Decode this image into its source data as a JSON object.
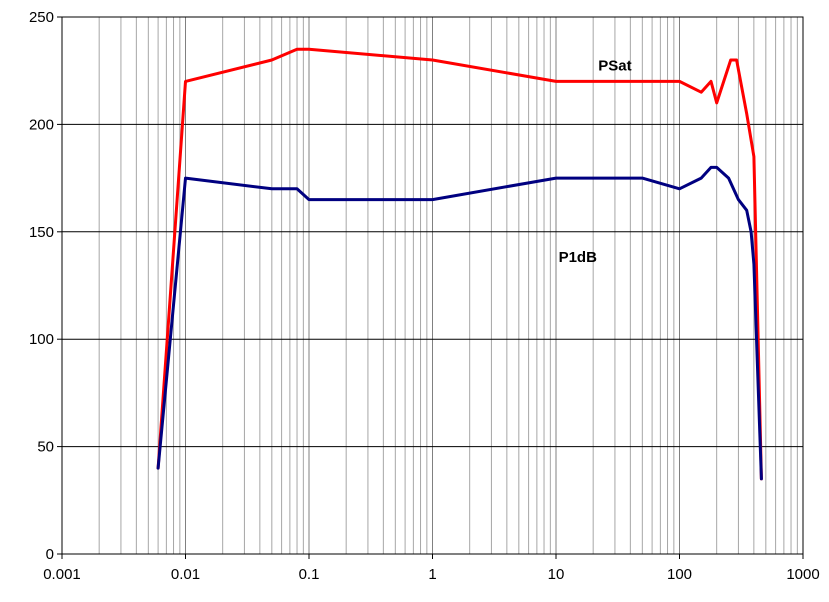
{
  "chart_data": {
    "type": "line",
    "x_scale": "log",
    "xlim": [
      0.001,
      1000
    ],
    "ylim": [
      0,
      250
    ],
    "x_ticks": [
      "0.001",
      "0.01",
      "0.1",
      "1",
      "10",
      "100",
      "1000"
    ],
    "y_ticks": [
      "0",
      "50",
      "100",
      "150",
      "200",
      "250"
    ],
    "grid": {
      "x_major": true,
      "x_minor": true,
      "y_major": true
    },
    "series": [
      {
        "name": "PSat",
        "color": "#ff0000",
        "points": [
          [
            0.006,
            40
          ],
          [
            0.01,
            220
          ],
          [
            0.05,
            230
          ],
          [
            0.08,
            235
          ],
          [
            0.1,
            235
          ],
          [
            1,
            230
          ],
          [
            10,
            220
          ],
          [
            100,
            220
          ],
          [
            150,
            215
          ],
          [
            180,
            220
          ],
          [
            200,
            210
          ],
          [
            260,
            230
          ],
          [
            290,
            230
          ],
          [
            350,
            205
          ],
          [
            400,
            185
          ],
          [
            460,
            35
          ]
        ]
      },
      {
        "name": "P1dB",
        "color": "#000080",
        "points": [
          [
            0.006,
            40
          ],
          [
            0.01,
            175
          ],
          [
            0.05,
            170
          ],
          [
            0.08,
            170
          ],
          [
            0.1,
            165
          ],
          [
            1,
            165
          ],
          [
            10,
            175
          ],
          [
            50,
            175
          ],
          [
            100,
            170
          ],
          [
            150,
            175
          ],
          [
            180,
            180
          ],
          [
            200,
            180
          ],
          [
            250,
            175
          ],
          [
            300,
            165
          ],
          [
            350,
            160
          ],
          [
            380,
            150
          ],
          [
            400,
            135
          ],
          [
            460,
            35
          ]
        ]
      }
    ],
    "annotations": [
      {
        "text": "PSat",
        "series": "PSat",
        "x": 30,
        "y": 225
      },
      {
        "text": "P1dB",
        "series": "P1dB",
        "x": 15,
        "y": 136
      }
    ]
  }
}
